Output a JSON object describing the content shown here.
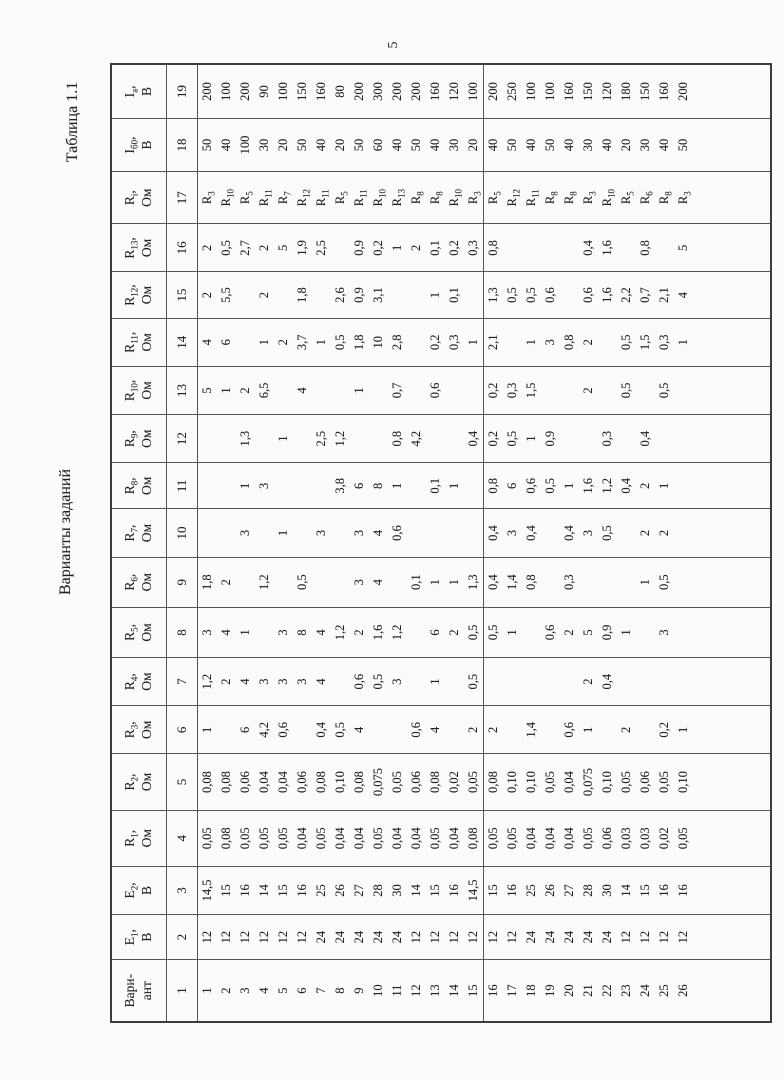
{
  "page": {
    "number": "5"
  },
  "labels": {
    "table_caption": "Таблица 1.1",
    "variants_title": "Варианты заданий"
  },
  "colors": {
    "ink": "#222222",
    "line": "#565656",
    "paper": "#fbfbf9"
  },
  "table": {
    "column_headers": [
      "Вари-\nант",
      "Е~1~,\nВ",
      "Е~2~,\nВ",
      "R~1~,\nОм",
      "R~2~,\nОм",
      "R~3~,\nОм",
      "R~4~,\nОм",
      "R~5~,\nОм",
      "R~6~,\nОм",
      "R~7~,\nОм",
      "R~8~,\nОм",
      "R~9~,\nОм",
      "R~10~,\nОм",
      "R~11~,\nОм",
      "R~12~,\nОм",
      "R~13~,\nОм",
      "R~i~,\nОм",
      "I~б0~,\nВ",
      "I~а~,\nВ"
    ],
    "column_numbers": [
      "1",
      "2",
      "3",
      "4",
      "5",
      "6",
      "7",
      "8",
      "9",
      "10",
      "11",
      "12",
      "13",
      "14",
      "15",
      "16",
      "17",
      "18",
      "19"
    ],
    "rows": [
      [
        "1",
        "12",
        "14,5",
        "0,05",
        "0,08",
        "1",
        "1,2",
        "3",
        "1,8",
        "",
        "",
        "",
        "5",
        "4",
        "2",
        "2",
        "R~3~",
        "50",
        "200"
      ],
      [
        "2",
        "12",
        "15",
        "0,08",
        "0,08",
        "",
        "2",
        "4",
        "2",
        "",
        "",
        "",
        "1",
        "6",
        "5,5",
        "0,5",
        "R~10~",
        "40",
        "100"
      ],
      [
        "3",
        "12",
        "16",
        "0,05",
        "0,06",
        "6",
        "4",
        "1",
        "",
        "3",
        "1",
        "1,3",
        "2",
        "",
        "",
        "2,7",
        "R~5~",
        "100",
        "200"
      ],
      [
        "4",
        "12",
        "14",
        "0,05",
        "0,04",
        "4,2",
        "3",
        "",
        "1,2",
        "",
        "3",
        "",
        "6,5",
        "1",
        "2",
        "2",
        "R~11~",
        "30",
        "90"
      ],
      [
        "5",
        "12",
        "15",
        "0,05",
        "0,04",
        "0,6",
        "3",
        "3",
        "",
        "1",
        "",
        "1",
        "",
        "2",
        "",
        "5",
        "R~7~",
        "20",
        "100"
      ],
      [
        "6",
        "12",
        "16",
        "0,04",
        "0,06",
        "",
        "3",
        "8",
        "0,5",
        "",
        "",
        "",
        "4",
        "3,7",
        "1,8",
        "1,9",
        "R~12~",
        "50",
        "150"
      ],
      [
        "7",
        "24",
        "25",
        "0,05",
        "0,08",
        "0,4",
        "4",
        "4",
        "",
        "3",
        "",
        "2,5",
        "",
        "1",
        "",
        "2,5",
        "R~11~",
        "40",
        "160"
      ],
      [
        "8",
        "24",
        "26",
        "0,04",
        "0,10",
        "0,5",
        "",
        "1,2",
        "",
        "",
        "3,8",
        "1,2",
        "",
        "0,5",
        "2,6",
        "",
        "R~5~",
        "20",
        "80"
      ],
      [
        "9",
        "24",
        "27",
        "0,04",
        "0,08",
        "4",
        "0,6",
        "2",
        "3",
        "3",
        "6",
        "",
        "1",
        "1,8",
        "0,9",
        "0,9",
        "R~11~",
        "50",
        "200"
      ],
      [
        "10",
        "24",
        "28",
        "0,05",
        "0,075",
        "",
        "0,5",
        "1,6",
        "4",
        "4",
        "8",
        "",
        "",
        "10",
        "3,1",
        "0,2",
        "R~10~",
        "60",
        "300"
      ],
      [
        "11",
        "24",
        "30",
        "0,04",
        "0,05",
        "",
        "3",
        "1,2",
        "",
        "0,6",
        "1",
        "0,8",
        "0,7",
        "2,8",
        "",
        "1",
        "R~13~",
        "40",
        "200"
      ],
      [
        "12",
        "12",
        "14",
        "0,04",
        "0,06",
        "0,6",
        "",
        "",
        "0,1",
        "",
        "",
        "4,2",
        "",
        "",
        "",
        "2",
        "R~8~",
        "50",
        "200"
      ],
      [
        "13",
        "12",
        "15",
        "0,05",
        "0,08",
        "4",
        "1",
        "6",
        "1",
        "",
        "0,1",
        "",
        "0,6",
        "0,2",
        "1",
        "0,1",
        "R~8~",
        "40",
        "160"
      ],
      [
        "14",
        "12",
        "16",
        "0,04",
        "0,02",
        "",
        "",
        "2",
        "1",
        "",
        "1",
        "",
        "",
        "0,3",
        "0,1",
        "0,2",
        "R~10~",
        "30",
        "120"
      ],
      [
        "15",
        "12",
        "14,5",
        "0,08",
        "0,05",
        "2",
        "0,5",
        "0,5",
        "1,3",
        "",
        "",
        "0,4",
        "",
        "1",
        "",
        "0,3",
        "R~3~",
        "20",
        "100"
      ],
      [
        "16",
        "12",
        "15",
        "0,05",
        "0,08",
        "2",
        "",
        "0,5",
        "0,4",
        "0,4",
        "0,8",
        "0,2",
        "0,2",
        "2,1",
        "1,3",
        "0,8",
        "R~5~",
        "40",
        "200"
      ],
      [
        "17",
        "12",
        "16",
        "0,05",
        "0,10",
        "",
        "",
        "1",
        "1,4",
        "3",
        "6",
        "0,5",
        "0,3",
        "",
        "0,5",
        "",
        "R~12~",
        "50",
        "250"
      ],
      [
        "18",
        "24",
        "25",
        "0,04",
        "0,10",
        "1,4",
        "",
        "",
        "0,8",
        "0,4",
        "0,6",
        "1",
        "1,5",
        "1",
        "0,5",
        "",
        "R~11~",
        "40",
        "100"
      ],
      [
        "19",
        "24",
        "26",
        "0,04",
        "0,05",
        "",
        "",
        "0,6",
        "",
        "",
        "0,5",
        "0,9",
        "",
        "3",
        "0,6",
        "",
        "R~8~",
        "50",
        "100"
      ],
      [
        "20",
        "24",
        "27",
        "0,04",
        "0,04",
        "0,6",
        "",
        "2",
        "0,3",
        "0,4",
        "1",
        "",
        "",
        "0,8",
        "",
        "",
        "R~8~",
        "40",
        "160"
      ],
      [
        "21",
        "24",
        "28",
        "0,05",
        "0,075",
        "1",
        "2",
        "5",
        "",
        "3",
        "1,6",
        "",
        "2",
        "2",
        "0,6",
        "0,4",
        "R~3~",
        "30",
        "150"
      ],
      [
        "22",
        "24",
        "30",
        "0,06",
        "0,10",
        "",
        "0,4",
        "0,9",
        "",
        "0,5",
        "1,2",
        "0,3",
        "",
        "",
        "1,6",
        "1,6",
        "R~10~",
        "40",
        "120"
      ],
      [
        "23",
        "12",
        "14",
        "0,03",
        "0,05",
        "2",
        "",
        "1",
        "",
        "",
        "0,4",
        "",
        "0,5",
        "0,5",
        "2,2",
        "",
        "R~5~",
        "20",
        "180"
      ],
      [
        "24",
        "12",
        "15",
        "0,03",
        "0,06",
        "",
        "",
        "",
        "1",
        "2",
        "2",
        "0,4",
        "",
        "1,5",
        "0,7",
        "0,8",
        "R~6~",
        "30",
        "150"
      ],
      [
        "25",
        "12",
        "16",
        "0,02",
        "0,05",
        "0,2",
        "",
        "3",
        "0,5",
        "2",
        "1",
        "",
        "0,5",
        "0,3",
        "2,1",
        "",
        "R~8~",
        "40",
        "160"
      ],
      [
        "26",
        "12",
        "16",
        "0,05",
        "0,10",
        "1",
        "",
        "",
        "",
        "",
        "",
        "",
        "",
        "1",
        "4",
        "5",
        "R~3~",
        "50",
        "200"
      ]
    ]
  }
}
